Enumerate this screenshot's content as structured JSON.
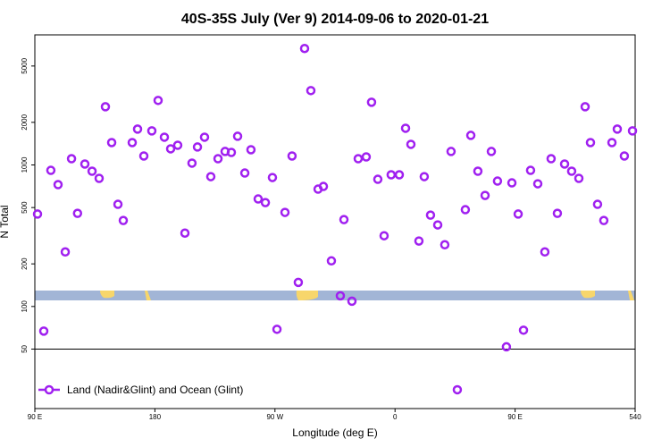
{
  "chart_data": {
    "type": "scatter",
    "title": "40S-35S July (Ver 9)   2014-09-06 to 2020-01-21",
    "x_label": "Longitude (deg E)",
    "y_label": "N Total",
    "log_y": true,
    "xlim": [
      90,
      540
    ],
    "ylim": [
      19,
      8300
    ],
    "xticks": [
      {
        "value": 90,
        "label": "90 E"
      },
      180,
      {
        "value": 270,
        "label": "90 W"
      },
      {
        "value": 360,
        "label": "0"
      },
      {
        "value": 450,
        "label": "90 E"
      },
      540
    ],
    "yticks": [
      50,
      100,
      200,
      500,
      1000,
      2000,
      5000
    ],
    "hline": 50,
    "legend": "bottom-left",
    "x": [
      92,
      96.7,
      102,
      107.4,
      112.8,
      117.5,
      122,
      127.5,
      132.9,
      138.2,
      142.9,
      147.6,
      152.3,
      156.3,
      163,
      167,
      171.7,
      177.7,
      182.4,
      187.1,
      191.8,
      197.1,
      202.5,
      207.8,
      211.9,
      217.2,
      221.9,
      227.3,
      232.6,
      237.3,
      242,
      247.4,
      252,
      257.4,
      262.8,
      268.1,
      271.5,
      277.5,
      282.8,
      287.5,
      292.2,
      296.9,
      302.3,
      306.3,
      312.3,
      319,
      321.7,
      327.7,
      332.4,
      338.4,
      342.4,
      347.1,
      351.8,
      357.1,
      363.2,
      367.9,
      371.9,
      377.9,
      381.9,
      386.6,
      392,
      397.3,
      402,
      406.7,
      412.7,
      416.8,
      422.1,
      427.5,
      432.2,
      436.8,
      443.5,
      447.6,
      452.3,
      456.3,
      461.6,
      467,
      472.3,
      477,
      481.7,
      487.1,
      492.4,
      497.8,
      502.5,
      506.5,
      511.8,
      516.5,
      522.6,
      526.6,
      531.9,
      538
    ],
    "series": [
      {
        "name": "Land (Nadir&Glint) and Ocean (Glint)",
        "color": "#a020f0",
        "values": [
          450,
          67,
          916,
          726,
          243,
          1107,
          455,
          1015,
          903,
          804,
          2578,
          1439,
          527,
          405,
          1439,
          1792,
          1157,
          1741,
          2856,
          1571,
          1300,
          1378,
          330,
          1030,
          1339,
          1571,
          827,
          1107,
          1245,
          1226,
          1595,
          877,
          1281,
          575,
          542,
          815,
          69,
          462,
          1157,
          148,
          6650,
          3353,
          675,
          705,
          210,
          119,
          411,
          109,
          1107,
          1140,
          2774,
          792,
          316,
          852,
          852,
          1817,
          1398,
          290,
          827,
          442,
          377,
          273,
          1245,
          25.8,
          483,
          1618,
          903,
          609,
          1245,
          769,
          51.9,
          747,
          450,
          68,
          916,
          736,
          243,
          1107,
          455,
          1015,
          903,
          804,
          2578,
          1439,
          527,
          405,
          1439,
          1792,
          1157,
          1741
        ]
      }
    ]
  }
}
